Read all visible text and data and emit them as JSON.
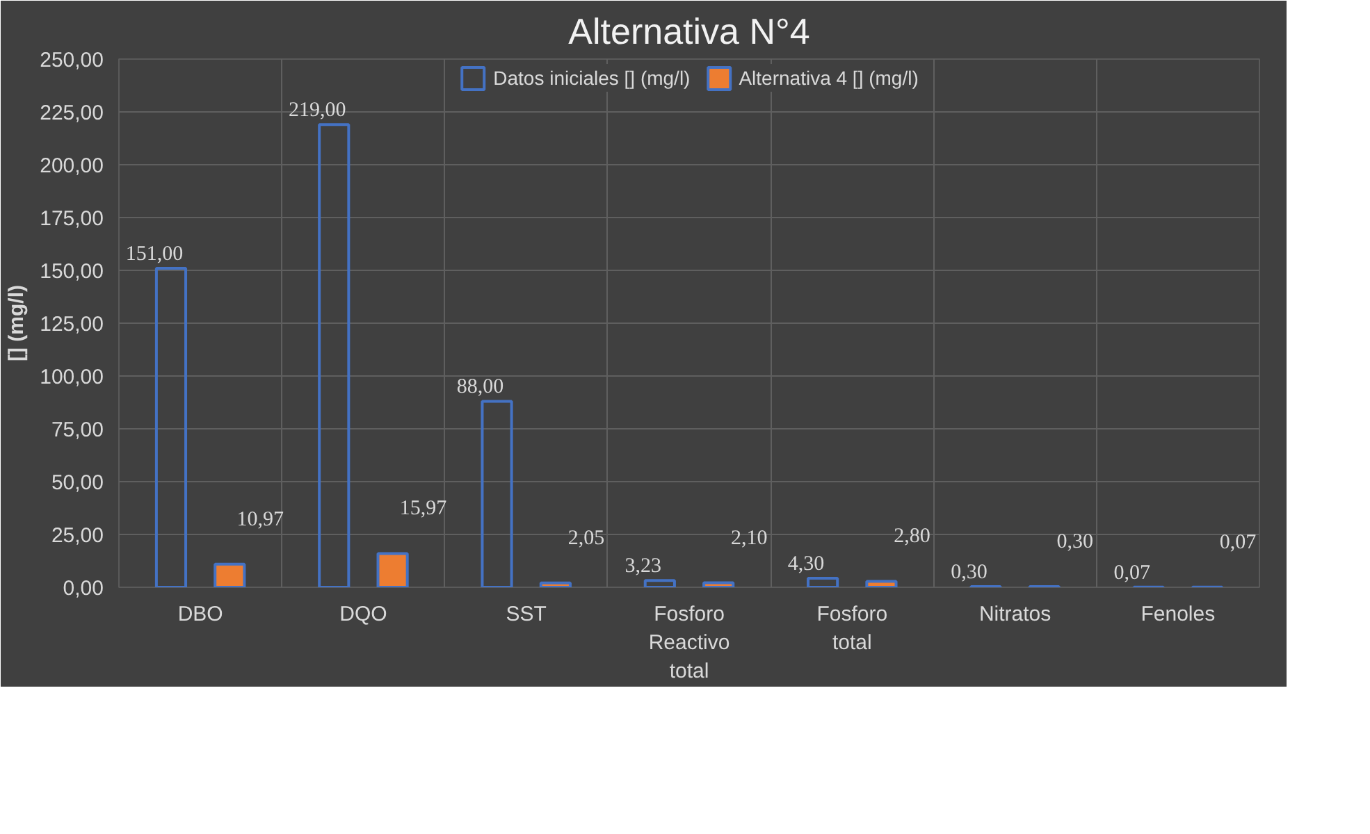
{
  "chart_data": {
    "type": "bar",
    "title": "Alternativa N°4",
    "ylabel": "[] (mg/l)",
    "categories": [
      "DBO",
      "DQO",
      "SST",
      "Fosforo Reactivo total",
      "Fosforo total",
      "Nitratos",
      "Fenoles"
    ],
    "series": [
      {
        "name": "Datos iniciales [] (mg/l)",
        "color": "#4472c4",
        "values": [
          151.0,
          219.0,
          88.0,
          3.23,
          4.3,
          0.3,
          0.07
        ],
        "value_labels": [
          "151,00",
          "219,00",
          "88,00",
          "3,23",
          "4,30",
          "0,30",
          "0,07"
        ]
      },
      {
        "name": "Alternativa 4 [] (mg/l)",
        "color": "#ed7d31",
        "values": [
          10.97,
          15.97,
          2.05,
          2.1,
          2.8,
          0.3,
          0.07
        ],
        "value_labels": [
          "10,97",
          "15,97",
          "2,05",
          "2,10",
          "2,80",
          "0,30",
          "0,07"
        ]
      }
    ],
    "ylim": [
      0,
      250
    ],
    "yticks": [
      {
        "value": 0,
        "label": "0,00"
      },
      {
        "value": 25,
        "label": "25,00"
      },
      {
        "value": 50,
        "label": "50,00"
      },
      {
        "value": 75,
        "label": "75,00"
      },
      {
        "value": 100,
        "label": "100,00"
      },
      {
        "value": 125,
        "label": "125,00"
      },
      {
        "value": 150,
        "label": "150,00"
      },
      {
        "value": 175,
        "label": "175,00"
      },
      {
        "value": 200,
        "label": "200,00"
      },
      {
        "value": 225,
        "label": "225,00"
      },
      {
        "value": 250,
        "label": "250,00"
      }
    ],
    "grid": true,
    "legend": "top"
  }
}
